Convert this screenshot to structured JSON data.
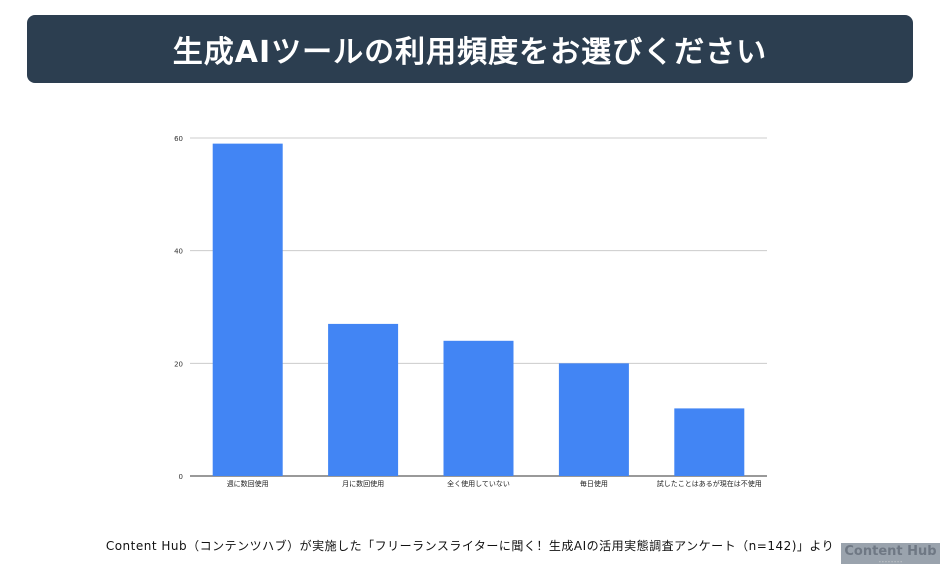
{
  "header": {
    "title": "生成AIツールの利用頻度をお選びください"
  },
  "chart_data": {
    "type": "bar",
    "categories": [
      "週に数回使用",
      "月に数回使用",
      "全く使用していない",
      "毎日使用",
      "試したことはあるが現在は不使用"
    ],
    "values": [
      59,
      27,
      24,
      20,
      12
    ],
    "yticks": [
      0,
      20,
      40,
      60
    ],
    "ylim": [
      0,
      60
    ],
    "grid": true,
    "color": "#4285f4"
  },
  "footer": {
    "caption": "Content Hub（コンテンツハブ）が実施した「フリーランスライターに聞く！生成AIの活用実態調査アンケート（n=142)」より",
    "logo": "Content Hub"
  }
}
